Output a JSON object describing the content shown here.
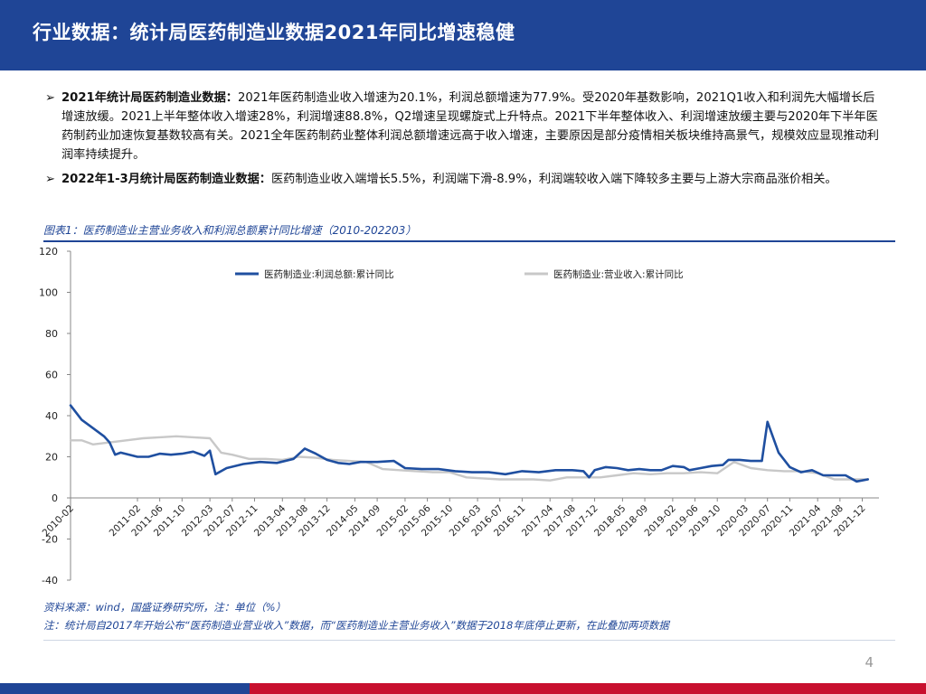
{
  "header": {
    "title": "行业数据：统计局医药制造业数据2021年同比增速稳健"
  },
  "bullets": [
    {
      "lead": "2021年统计局医药制造业数据：",
      "text": "2021年医药制造业收入增速为20.1%，利润总额增速为77.9%。受2020年基数影响，2021Q1收入和利润先大幅增长后增速放缓。2021上半年整体收入增速28%，利润增速88.8%，Q2增速呈现螺旋式上升特点。2021下半年整体收入、利润增速放缓主要与2020年下半年医药制药业加速恢复基数较高有关。2021全年医药制药业整体利润总额增速远高于收入增速，主要原因是部分疫情相关板块维持高景气，规模效应显现推动利润率持续提升。"
    },
    {
      "lead": "2022年1-3月统计局医药制造业数据：",
      "text": "医药制造业收入端增长5.5%，利润端下滑-8.9%，利润端较收入端下降较多主要与上游大宗商品涨价相关。"
    }
  ],
  "figure": {
    "label": "图表1：医药制造业主营业务收入和利润总额累计同比增速（2010-202203）"
  },
  "source": {
    "line1": "资料来源：wind，国盛证券研究所，注：单位（%）",
    "line2": "注：统计局自2017年开始公布“医药制造业营业收入”数据，而“医药制造业主营业务收入”数据于2018年底停止更新，在此叠加两项数据"
  },
  "page_number": "4",
  "chart_data": {
    "type": "line",
    "title": "",
    "xlabel": "",
    "ylabel": "",
    "ylim": [
      -40,
      120
    ],
    "yticks": [
      -40,
      -20,
      0,
      20,
      40,
      60,
      80,
      100,
      120
    ],
    "grid": false,
    "legend_position": "top",
    "x_start": "2010-02",
    "x_end": "2022-03",
    "x_tick_labels": [
      "2010-02",
      "2011-02",
      "2011-06",
      "2011-10",
      "2012-03",
      "2012-07",
      "2012-11",
      "2013-04",
      "2013-08",
      "2013-12",
      "2014-05",
      "2014-09",
      "2015-02",
      "2015-06",
      "2015-10",
      "2016-03",
      "2016-07",
      "2016-11",
      "2017-04",
      "2017-08",
      "2017-12",
      "2018-05",
      "2018-09",
      "2019-02",
      "2019-06",
      "2019-10",
      "2020-03",
      "2020-07",
      "2020-11",
      "2021-04",
      "2021-08",
      "2021-12"
    ],
    "series": [
      {
        "name": "医药制造业:利润总额:累计同比",
        "color": "#1f4fa0",
        "points": [
          [
            "2010-02",
            45
          ],
          [
            "2010-04",
            38
          ],
          [
            "2010-06",
            34
          ],
          [
            "2010-08",
            30
          ],
          [
            "2010-09",
            27
          ],
          [
            "2010-10",
            21
          ],
          [
            "2010-11",
            22
          ],
          [
            "2011-02",
            20
          ],
          [
            "2011-04",
            20
          ],
          [
            "2011-06",
            21.5
          ],
          [
            "2011-08",
            21
          ],
          [
            "2011-10",
            21.5
          ],
          [
            "2011-12",
            22.5
          ],
          [
            "2012-02",
            20.5
          ],
          [
            "2012-03",
            23
          ],
          [
            "2012-04",
            11.5
          ],
          [
            "2012-06",
            14.5
          ],
          [
            "2012-09",
            16.5
          ],
          [
            "2012-12",
            17.5
          ],
          [
            "2013-03",
            17
          ],
          [
            "2013-06",
            19
          ],
          [
            "2013-08",
            24
          ],
          [
            "2013-10",
            21.5
          ],
          [
            "2013-12",
            18.5
          ],
          [
            "2014-02",
            17
          ],
          [
            "2014-04",
            16.5
          ],
          [
            "2014-06",
            17.5
          ],
          [
            "2014-09",
            17.5
          ],
          [
            "2014-12",
            18
          ],
          [
            "2015-02",
            14.5
          ],
          [
            "2015-05",
            14
          ],
          [
            "2015-08",
            14
          ],
          [
            "2015-11",
            13
          ],
          [
            "2016-02",
            12.5
          ],
          [
            "2016-05",
            12.5
          ],
          [
            "2016-08",
            11.5
          ],
          [
            "2016-11",
            13
          ],
          [
            "2017-02",
            12.5
          ],
          [
            "2017-05",
            13.5
          ],
          [
            "2017-08",
            13.5
          ],
          [
            "2017-10",
            13
          ],
          [
            "2017-11",
            10
          ],
          [
            "2017-12",
            13.5
          ],
          [
            "2018-02",
            15
          ],
          [
            "2018-04",
            14.5
          ],
          [
            "2018-06",
            13.5
          ],
          [
            "2018-08",
            14
          ],
          [
            "2018-10",
            13.5
          ],
          [
            "2018-12",
            13.5
          ],
          [
            "2019-02",
            15.5
          ],
          [
            "2019-04",
            15
          ],
          [
            "2019-05",
            13.5
          ],
          [
            "2019-07",
            14.5
          ],
          [
            "2019-09",
            15.5
          ],
          [
            "2019-11",
            16
          ],
          [
            "2019-12",
            18.5
          ],
          [
            "2020-02",
            18.5
          ],
          [
            "2020-04",
            18
          ],
          [
            "2020-06",
            18
          ],
          [
            "2020-07",
            37
          ],
          [
            "2020-09",
            22
          ],
          [
            "2020-11",
            15
          ],
          [
            "2021-01",
            12.5
          ],
          [
            "2021-03",
            13.5
          ],
          [
            "2021-05",
            11
          ],
          [
            "2021-07",
            11
          ],
          [
            "2021-09",
            11
          ],
          [
            "2021-11",
            8
          ],
          [
            "2022-01",
            9
          ]
        ]
      },
      {
        "name": "医药制造业:营业收入:累计同比",
        "color": "#c8c8c8",
        "points": [
          [
            "2010-02",
            28
          ],
          [
            "2010-04",
            28
          ],
          [
            "2010-06",
            26
          ],
          [
            "2010-09",
            27
          ],
          [
            "2010-12",
            28
          ],
          [
            "2011-03",
            29
          ],
          [
            "2011-06",
            29.5
          ],
          [
            "2011-09",
            30
          ],
          [
            "2011-12",
            29.5
          ],
          [
            "2012-03",
            29
          ],
          [
            "2012-05",
            22
          ],
          [
            "2012-07",
            21
          ],
          [
            "2012-10",
            19
          ],
          [
            "2013-01",
            19
          ],
          [
            "2013-04",
            18.5
          ],
          [
            "2013-07",
            20
          ],
          [
            "2013-10",
            19.5
          ],
          [
            "2014-01",
            18.5
          ],
          [
            "2014-04",
            18
          ],
          [
            "2014-07",
            17.5
          ],
          [
            "2014-10",
            14
          ],
          [
            "2015-01",
            13.5
          ],
          [
            "2015-04",
            13
          ],
          [
            "2015-07",
            12.5
          ],
          [
            "2015-10",
            12.5
          ],
          [
            "2016-01",
            10
          ],
          [
            "2016-04",
            9.5
          ],
          [
            "2016-07",
            9
          ],
          [
            "2016-10",
            9
          ],
          [
            "2017-01",
            9
          ],
          [
            "2017-04",
            8.5
          ],
          [
            "2017-07",
            10
          ],
          [
            "2017-10",
            10
          ],
          [
            "2018-01",
            10
          ],
          [
            "2018-04",
            11
          ],
          [
            "2018-07",
            12
          ],
          [
            "2018-10",
            11.5
          ],
          [
            "2019-01",
            12
          ],
          [
            "2019-04",
            12
          ],
          [
            "2019-07",
            12.5
          ],
          [
            "2019-10",
            12
          ],
          [
            "2020-01",
            17.5
          ],
          [
            "2020-04",
            14.5
          ],
          [
            "2020-07",
            13.5
          ],
          [
            "2020-10",
            13
          ],
          [
            "2021-01",
            13
          ],
          [
            "2021-04",
            12
          ],
          [
            "2021-07",
            9
          ],
          [
            "2021-10",
            9
          ],
          [
            "2022-01",
            9
          ]
        ]
      }
    ]
  }
}
